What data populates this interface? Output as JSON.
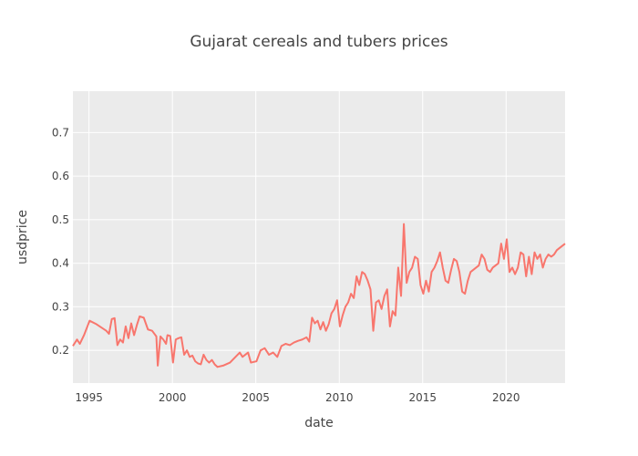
{
  "chart_data": {
    "type": "line",
    "title": "Gujarat cereals and tubers prices",
    "xlabel": "date",
    "ylabel": "usdprice",
    "x_axis_type": "date",
    "xlim": [
      "1994-01-15",
      "2023-07-15"
    ],
    "ylim": [
      0.125,
      0.795
    ],
    "x_ticks": [
      "1995",
      "2000",
      "2005",
      "2010",
      "2015",
      "2020"
    ],
    "y_ticks": [
      0.2,
      0.3,
      0.4,
      0.5,
      0.6,
      0.7
    ],
    "grid": true,
    "legend": "none",
    "colors": {
      "line": "#f8766d",
      "plot_bg": "#ebebeb",
      "grid": "#ffffff",
      "text": "#444444"
    },
    "series": [
      {
        "points": [
          [
            "1994-01-15",
            0.21
          ],
          [
            "1994-04-15",
            0.225
          ],
          [
            "1994-06-15",
            0.215
          ],
          [
            "1994-09-15",
            0.235
          ],
          [
            "1995-01-15",
            0.268
          ],
          [
            "1995-06-15",
            0.26
          ],
          [
            "1996-01-15",
            0.245
          ],
          [
            "1996-03-15",
            0.238
          ],
          [
            "1996-05-15",
            0.272
          ],
          [
            "1996-07-15",
            0.274
          ],
          [
            "1996-09-15",
            0.212
          ],
          [
            "1996-11-15",
            0.225
          ],
          [
            "1997-01-15",
            0.218
          ],
          [
            "1997-03-15",
            0.255
          ],
          [
            "1997-05-15",
            0.228
          ],
          [
            "1997-07-15",
            0.262
          ],
          [
            "1997-09-15",
            0.235
          ],
          [
            "1997-11-15",
            0.258
          ],
          [
            "1998-01-15",
            0.278
          ],
          [
            "1998-04-15",
            0.275
          ],
          [
            "1998-07-15",
            0.248
          ],
          [
            "1998-10-15",
            0.245
          ],
          [
            "1999-01-15",
            0.232
          ],
          [
            "1999-02-15",
            0.165
          ],
          [
            "1999-04-15",
            0.232
          ],
          [
            "1999-06-15",
            0.225
          ],
          [
            "1999-08-15",
            0.215
          ],
          [
            "1999-09-15",
            0.235
          ],
          [
            "1999-11-15",
            0.233
          ],
          [
            "2000-01-15",
            0.172
          ],
          [
            "2000-03-15",
            0.225
          ],
          [
            "2000-05-15",
            0.228
          ],
          [
            "2000-07-15",
            0.23
          ],
          [
            "2000-09-15",
            0.19
          ],
          [
            "2000-11-15",
            0.2
          ],
          [
            "2001-01-15",
            0.185
          ],
          [
            "2001-03-15",
            0.188
          ],
          [
            "2001-05-15",
            0.175
          ],
          [
            "2001-07-15",
            0.17
          ],
          [
            "2001-09-15",
            0.168
          ],
          [
            "2001-11-15",
            0.19
          ],
          [
            "2002-01-15",
            0.178
          ],
          [
            "2002-03-15",
            0.172
          ],
          [
            "2002-05-15",
            0.178
          ],
          [
            "2002-07-15",
            0.168
          ],
          [
            "2002-09-15",
            0.162
          ],
          [
            "2003-01-15",
            0.165
          ],
          [
            "2003-06-15",
            0.172
          ],
          [
            "2003-09-15",
            0.182
          ],
          [
            "2004-01-15",
            0.195
          ],
          [
            "2004-03-15",
            0.185
          ],
          [
            "2004-05-15",
            0.19
          ],
          [
            "2004-07-15",
            0.195
          ],
          [
            "2004-09-15",
            0.172
          ],
          [
            "2005-01-15",
            0.175
          ],
          [
            "2005-04-15",
            0.2
          ],
          [
            "2005-07-15",
            0.205
          ],
          [
            "2005-10-15",
            0.19
          ],
          [
            "2006-01-15",
            0.195
          ],
          [
            "2006-04-15",
            0.185
          ],
          [
            "2006-07-15",
            0.21
          ],
          [
            "2006-10-15",
            0.215
          ],
          [
            "2007-01-15",
            0.212
          ],
          [
            "2007-04-15",
            0.218
          ],
          [
            "2007-07-15",
            0.222
          ],
          [
            "2007-10-15",
            0.225
          ],
          [
            "2008-01-15",
            0.23
          ],
          [
            "2008-03-15",
            0.22
          ],
          [
            "2008-05-15",
            0.275
          ],
          [
            "2008-07-15",
            0.262
          ],
          [
            "2008-09-15",
            0.268
          ],
          [
            "2008-11-15",
            0.248
          ],
          [
            "2009-01-15",
            0.265
          ],
          [
            "2009-03-15",
            0.245
          ],
          [
            "2009-05-15",
            0.26
          ],
          [
            "2009-07-15",
            0.285
          ],
          [
            "2009-09-15",
            0.295
          ],
          [
            "2009-11-15",
            0.315
          ],
          [
            "2010-01-15",
            0.255
          ],
          [
            "2010-03-15",
            0.28
          ],
          [
            "2010-05-15",
            0.3
          ],
          [
            "2010-07-15",
            0.31
          ],
          [
            "2010-09-15",
            0.33
          ],
          [
            "2010-11-15",
            0.32
          ],
          [
            "2011-01-15",
            0.37
          ],
          [
            "2011-03-15",
            0.35
          ],
          [
            "2011-05-15",
            0.38
          ],
          [
            "2011-07-15",
            0.375
          ],
          [
            "2011-09-15",
            0.36
          ],
          [
            "2011-11-15",
            0.34
          ],
          [
            "2012-01-15",
            0.245
          ],
          [
            "2012-03-15",
            0.31
          ],
          [
            "2012-05-15",
            0.315
          ],
          [
            "2012-07-15",
            0.295
          ],
          [
            "2012-09-15",
            0.325
          ],
          [
            "2012-11-15",
            0.34
          ],
          [
            "2013-01-15",
            0.255
          ],
          [
            "2013-03-15",
            0.29
          ],
          [
            "2013-05-15",
            0.28
          ],
          [
            "2013-07-15",
            0.39
          ],
          [
            "2013-09-15",
            0.325
          ],
          [
            "2013-11-15",
            0.49
          ],
          [
            "2014-01-15",
            0.355
          ],
          [
            "2014-03-15",
            0.38
          ],
          [
            "2014-05-15",
            0.39
          ],
          [
            "2014-07-15",
            0.415
          ],
          [
            "2014-09-15",
            0.41
          ],
          [
            "2014-11-15",
            0.35
          ],
          [
            "2015-01-15",
            0.33
          ],
          [
            "2015-03-15",
            0.36
          ],
          [
            "2015-05-15",
            0.335
          ],
          [
            "2015-07-15",
            0.38
          ],
          [
            "2015-09-15",
            0.39
          ],
          [
            "2015-11-15",
            0.405
          ],
          [
            "2016-01-15",
            0.425
          ],
          [
            "2016-03-15",
            0.39
          ],
          [
            "2016-05-15",
            0.36
          ],
          [
            "2016-07-15",
            0.355
          ],
          [
            "2016-09-15",
            0.385
          ],
          [
            "2016-11-15",
            0.41
          ],
          [
            "2017-01-15",
            0.405
          ],
          [
            "2017-03-15",
            0.38
          ],
          [
            "2017-05-15",
            0.335
          ],
          [
            "2017-07-15",
            0.33
          ],
          [
            "2017-09-15",
            0.36
          ],
          [
            "2017-11-15",
            0.38
          ],
          [
            "2018-01-15",
            0.385
          ],
          [
            "2018-03-15",
            0.39
          ],
          [
            "2018-05-15",
            0.395
          ],
          [
            "2018-07-15",
            0.42
          ],
          [
            "2018-09-15",
            0.41
          ],
          [
            "2018-11-15",
            0.385
          ],
          [
            "2019-01-15",
            0.38
          ],
          [
            "2019-03-15",
            0.39
          ],
          [
            "2019-05-15",
            0.395
          ],
          [
            "2019-07-15",
            0.4
          ],
          [
            "2019-09-15",
            0.445
          ],
          [
            "2019-11-15",
            0.41
          ],
          [
            "2020-01-15",
            0.455
          ],
          [
            "2020-03-15",
            0.38
          ],
          [
            "2020-05-15",
            0.39
          ],
          [
            "2020-07-15",
            0.375
          ],
          [
            "2020-09-15",
            0.39
          ],
          [
            "2020-11-15",
            0.425
          ],
          [
            "2021-01-15",
            0.42
          ],
          [
            "2021-03-15",
            0.37
          ],
          [
            "2021-05-15",
            0.415
          ],
          [
            "2021-07-15",
            0.375
          ],
          [
            "2021-09-15",
            0.425
          ],
          [
            "2021-11-15",
            0.41
          ],
          [
            "2022-01-15",
            0.42
          ],
          [
            "2022-03-15",
            0.39
          ],
          [
            "2022-05-15",
            0.41
          ],
          [
            "2022-07-15",
            0.42
          ],
          [
            "2022-09-15",
            0.415
          ],
          [
            "2022-11-15",
            0.42
          ],
          [
            "2023-01-15",
            0.43
          ],
          [
            "2023-03-15",
            0.435
          ],
          [
            "2023-05-15",
            0.44
          ],
          [
            "2023-07-15",
            0.445
          ]
        ]
      }
    ]
  }
}
